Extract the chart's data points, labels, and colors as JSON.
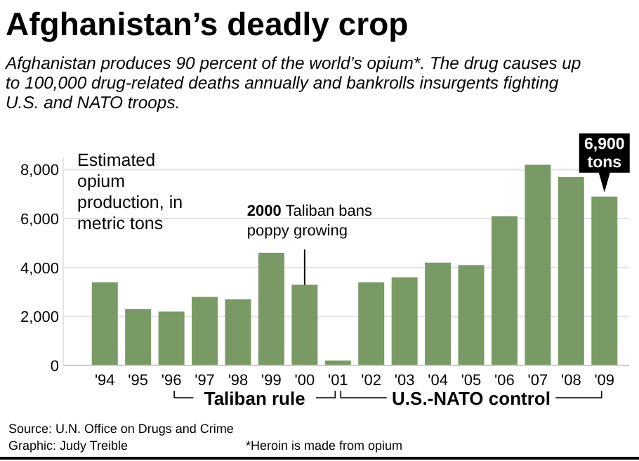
{
  "chart_data": {
    "type": "bar",
    "title": "Afghanistan’s deadly crop",
    "subtitle": "Afghanistan produces 90 percent of the world’s opium*. The drug causes up to 100,000 drug-related deaths annually and bankrolls insurgents fighting U.S. and NATO troops.",
    "ylabel": "Estimated opium production, in metric tons",
    "categories": [
      "'94",
      "'95",
      "'96",
      "'97",
      "'98",
      "'99",
      "'00",
      "'01",
      "'02",
      "'03",
      "'04",
      "'05",
      "'06",
      "'07",
      "'08",
      "'09"
    ],
    "values": [
      3400,
      2300,
      2200,
      2800,
      2700,
      4600,
      3300,
      200,
      3400,
      3600,
      4200,
      4100,
      6100,
      8200,
      7700,
      6900
    ],
    "color": "#7a9a65",
    "ylim": [
      0,
      8500
    ],
    "yticks": [
      {
        "value": 0,
        "label": "0"
      },
      {
        "value": 2000,
        "label": "2,000"
      },
      {
        "value": 4000,
        "label": "4,000"
      },
      {
        "value": 6000,
        "label": "6,000"
      },
      {
        "value": 8000,
        "label": "8,000"
      }
    ],
    "grid": "y",
    "annotations": [
      {
        "text": "2000 Taliban bans poppy growing",
        "x": "'00",
        "y": 3300
      },
      {
        "text": "6,900 tons",
        "x": "'09",
        "y": 6900
      },
      "Taliban rule",
      "U.S.-NATO control",
      "Source: U.N. Office on Drugs and Crime",
      "Graphic: Judy Treible",
      "*Heroin is made from opium"
    ]
  }
}
